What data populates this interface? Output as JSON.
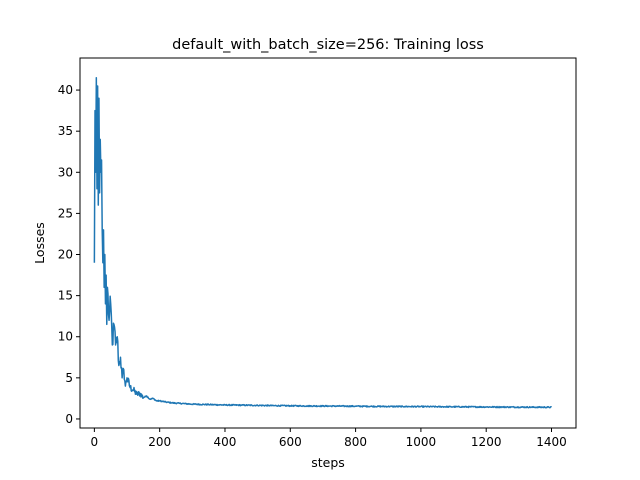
{
  "chart_data": {
    "type": "line",
    "title": "default_with_batch_size=256: Training loss",
    "xlabel": "steps",
    "ylabel": "Losses",
    "xlim": [
      -44,
      1475
    ],
    "ylim": [
      -1.1,
      43.9
    ],
    "xticks": [
      0,
      200,
      400,
      600,
      800,
      1000,
      1200,
      1400
    ],
    "yticks": [
      0,
      5,
      10,
      15,
      20,
      25,
      30,
      35,
      40
    ],
    "grid": false,
    "legend": "none",
    "series": [
      {
        "color": "#1f77b4",
        "x": [
          0,
          2,
          4,
          6,
          8,
          10,
          12,
          14,
          16,
          18,
          20,
          22,
          24,
          26,
          28,
          30,
          32,
          34,
          36,
          38,
          40,
          45,
          50,
          55,
          60,
          65,
          70,
          75,
          80,
          85,
          90,
          95,
          100,
          110,
          120,
          130,
          140,
          150,
          160,
          170,
          180,
          190,
          200,
          220,
          240,
          260,
          280,
          300,
          350,
          400,
          450,
          500,
          550,
          600,
          650,
          700,
          750,
          800,
          850,
          900,
          950,
          1000,
          1050,
          1100,
          1150,
          1200,
          1250,
          1300,
          1350,
          1400
        ],
        "y": [
          19.0,
          37.5,
          30.0,
          41.5,
          28.0,
          40.5,
          26.0,
          39.0,
          27.5,
          34.0,
          30.0,
          31.5,
          23.0,
          19.0,
          23.0,
          16.0,
          20.0,
          14.0,
          17.5,
          11.5,
          16.0,
          12.0,
          14.0,
          9.0,
          11.5,
          9.0,
          10.0,
          6.5,
          7.5,
          5.0,
          6.0,
          4.0,
          5.0,
          3.8,
          3.5,
          3.0,
          3.1,
          2.6,
          2.8,
          2.4,
          2.5,
          2.2,
          2.2,
          2.05,
          1.95,
          1.9,
          1.85,
          1.8,
          1.75,
          1.7,
          1.68,
          1.65,
          1.62,
          1.6,
          1.58,
          1.57,
          1.56,
          1.55,
          1.53,
          1.52,
          1.51,
          1.5,
          1.49,
          1.48,
          1.47,
          1.46,
          1.45,
          1.44,
          1.43,
          1.42
        ]
      }
    ]
  }
}
